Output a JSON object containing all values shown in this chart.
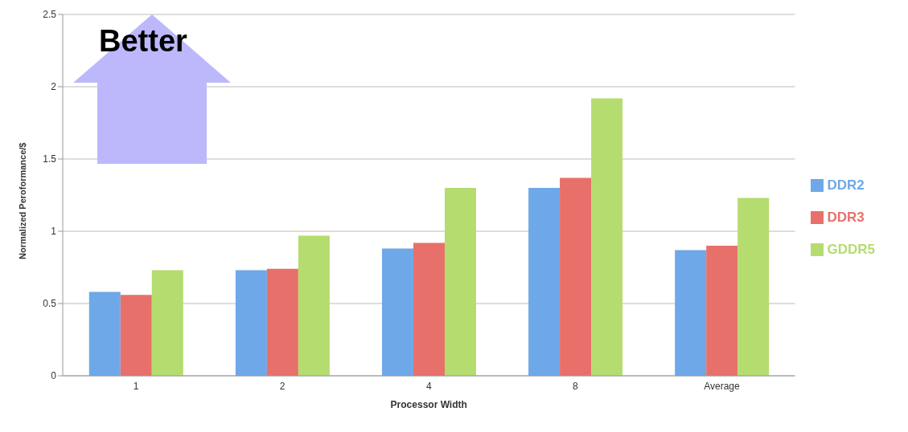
{
  "chart_data": {
    "type": "bar",
    "xlabel": "Processor Width",
    "ylabel": "Normalized Peroformance/$",
    "categories": [
      "1",
      "2",
      "4",
      "8",
      "Average"
    ],
    "series": [
      {
        "name": "DDR2",
        "color": "#6fa8e8",
        "values": [
          0.58,
          0.73,
          0.88,
          1.3,
          0.87
        ]
      },
      {
        "name": "DDR3",
        "color": "#e8706a",
        "values": [
          0.56,
          0.74,
          0.92,
          1.37,
          0.9
        ]
      },
      {
        "name": "GDDR5",
        "color": "#b5dc6e",
        "values": [
          0.73,
          0.97,
          1.3,
          1.92,
          1.23
        ]
      }
    ],
    "ylim": [
      0,
      2.5
    ],
    "yticks": [
      0,
      0.5,
      1,
      1.5,
      2,
      2.5
    ],
    "grid": "y",
    "legend": "right",
    "annotations": [
      "Better"
    ]
  }
}
